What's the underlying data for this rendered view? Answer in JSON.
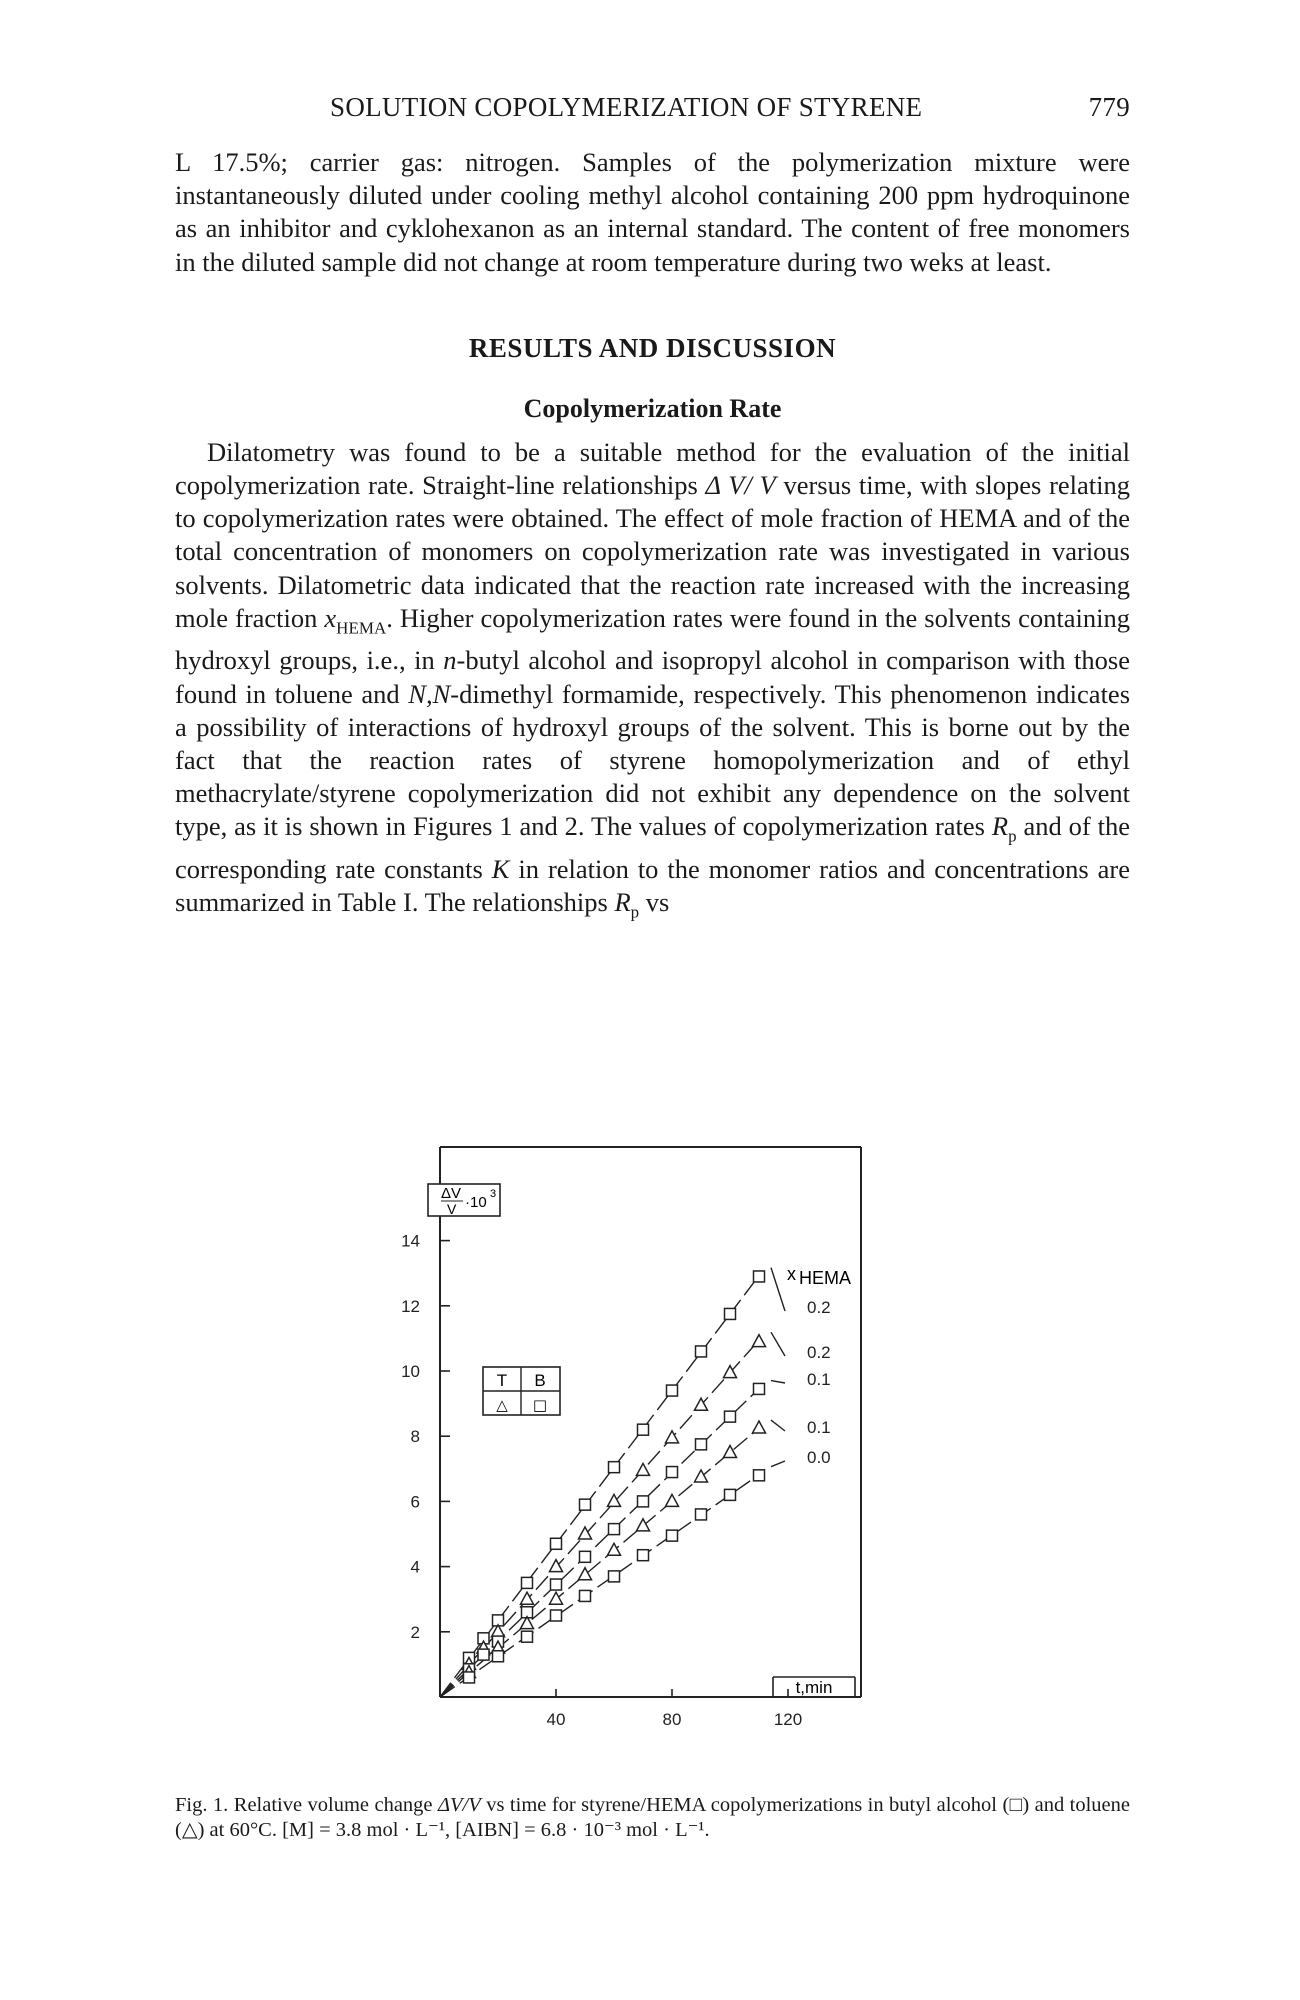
{
  "running_head": {
    "title": "SOLUTION COPOLYMERIZATION OF STYRENE",
    "page_number": "779"
  },
  "paragraphs": {
    "continuation": "L 17.5%; carrier gas: nitrogen. Samples of the polymerization mixture were instantaneously diluted under cooling methyl alcohol containing 200 ppm hydroquinone as an inhibitor and cyklohexanon as an internal standard. The content of free monomers in the diluted sample did not change at room temperature during two weks at least.",
    "rate_p1": "Dilatometry was found to be a suitable method for the evaluation of the initial copolymerization rate. Straight-line relationships",
    "rate_p1_sym": "Δ V/ V",
    "rate_p2": " versus time, with slopes relating to copolymerization rates were obtained. The effect of mole fraction of HEMA and of the total concentration of monomers on copolymerization rate was investigated in various solvents. Dilatometric data indicated that the reaction rate increased with the increasing mole fraction ",
    "rate_p2_sym": "x",
    "rate_p2_sub": "HEMA",
    "rate_p3": ". Higher copolymerization rates were found in the solvents containing hydroxyl groups, i.e., in ",
    "rate_p3_sym": "n",
    "rate_p4": "-butyl alcohol and isopropyl alcohol in comparison with those found in toluene and ",
    "rate_p4_sym": "N,N",
    "rate_p5": "-dimethyl formamide, respectively. This phenomenon indicates a possibility of interactions of hydroxyl groups of the solvent. This is borne out by the fact that the reaction rates of styrene homopolymerization and of ethyl methacrylate/styrene copolymerization did not exhibit any dependence on the solvent type, as it is shown in Figures 1 and 2. The values of copolymerization rates ",
    "rate_p5_sym": "R",
    "rate_p5_sub": "p",
    "rate_p6": " and of the corresponding rate constants ",
    "rate_p6_sym": "K",
    "rate_p7": " in relation to the monomer ratios and concentrations are summarized in Table I. The relationships ",
    "rate_p7_sym": "R",
    "rate_p7_sub": "p",
    "rate_p8": " vs"
  },
  "headings": {
    "section": "RESULTS AND DISCUSSION",
    "subsection": "Copolymerization Rate"
  },
  "figure": {
    "ylabel": "ΔV/V·10³",
    "ylabel_top": "ΔV",
    "ylabel_bottom": "V",
    "ylabel_factor": "·10",
    "ylabel_exp": "3",
    "xlabel": "t,min",
    "legend_title_x": "x",
    "legend_title_sub": "HEMA",
    "legend_key": {
      "T": "T",
      "B": "B",
      "T_marker": "△",
      "B_marker": "□"
    },
    "line_labels": [
      "0.2",
      "0.2",
      "0.1",
      "0.1",
      "0.0"
    ]
  },
  "chart_data": {
    "type": "scatter",
    "title": "",
    "xlabel": "t,min",
    "ylabel": "ΔV/V·10³",
    "xlim": [
      0,
      148
    ],
    "ylim": [
      0,
      16
    ],
    "xticks": [
      40,
      80,
      120
    ],
    "yticks": [
      2,
      4,
      6,
      8,
      10,
      12,
      14
    ],
    "legend": "top-right, x_HEMA labels at line ends; T/B key top-left",
    "series": [
      {
        "name": "0.2",
        "solvent": "B",
        "marker": "square",
        "slope": 0.1175,
        "x": [
          10,
          15,
          20,
          30,
          40,
          50,
          60,
          70,
          80,
          90,
          100,
          110
        ],
        "y": [
          1.2,
          1.8,
          2.35,
          3.5,
          4.7,
          5.9,
          7.05,
          8.2,
          9.4,
          10.6,
          11.75,
          12.9
        ]
      },
      {
        "name": "0.2",
        "solvent": "T",
        "marker": "triangle",
        "slope": 0.0995,
        "x": [
          10,
          15,
          20,
          30,
          40,
          50,
          60,
          70,
          80,
          90,
          100,
          110
        ],
        "y": [
          1.0,
          1.5,
          2.0,
          3.0,
          4.0,
          5.0,
          6.0,
          6.95,
          7.95,
          8.95,
          9.95,
          10.9
        ]
      },
      {
        "name": "0.1",
        "solvent": "B",
        "marker": "square",
        "slope": 0.086,
        "x": [
          10,
          15,
          20,
          30,
          40,
          50,
          60,
          70,
          80,
          90,
          100,
          110
        ],
        "y": [
          0.85,
          1.3,
          1.7,
          2.6,
          3.45,
          4.3,
          5.15,
          6.0,
          6.9,
          7.75,
          8.6,
          9.45
        ]
      },
      {
        "name": "0.1",
        "solvent": "T",
        "marker": "triangle",
        "slope": 0.075,
        "x": [
          10,
          20,
          30,
          40,
          50,
          60,
          70,
          80,
          90,
          100,
          110
        ],
        "y": [
          0.75,
          1.5,
          2.25,
          3.0,
          3.75,
          4.5,
          5.25,
          6.0,
          6.75,
          7.5,
          8.25
        ]
      },
      {
        "name": "0.0",
        "solvent": "B",
        "marker": "square",
        "slope": 0.062,
        "x": [
          10,
          20,
          30,
          40,
          50,
          60,
          70,
          80,
          90,
          100,
          110
        ],
        "y": [
          0.6,
          1.25,
          1.85,
          2.5,
          3.1,
          3.7,
          4.35,
          4.95,
          5.6,
          6.2,
          6.8
        ]
      }
    ]
  },
  "caption": {
    "lead": "Fig. 1.",
    "text": " Relative volume change ",
    "sym": "ΔV/V",
    "rest": " vs time for styrene/HEMA copolymerizations in butyl alcohol (□) and toluene (△) at 60°C. [M] = 3.8 mol · L⁻¹, [AIBN] = 6.8 · 10⁻³ mol · L⁻¹."
  }
}
